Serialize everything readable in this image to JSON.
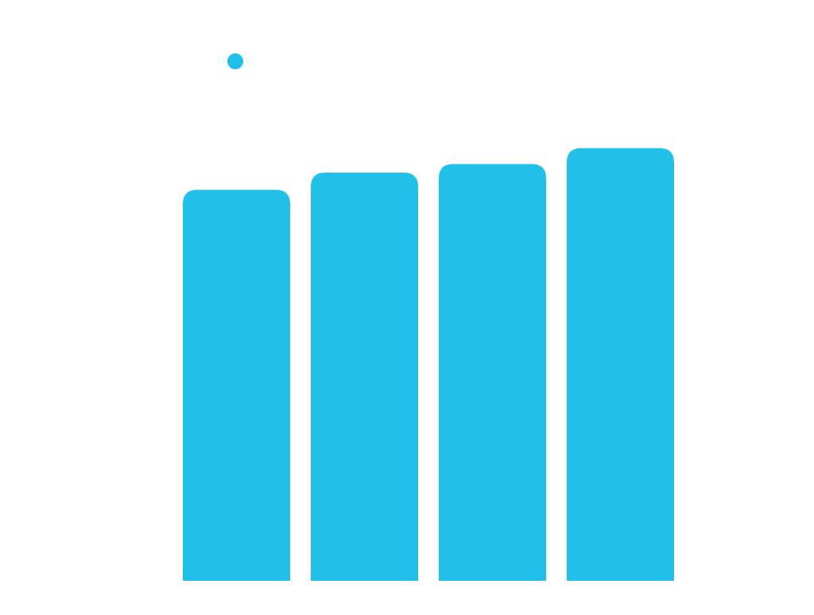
{
  "chart_data": {
    "type": "bar",
    "categories": [
      "",
      "",
      "",
      ""
    ],
    "series": [
      {
        "values": [
          91,
          95,
          97,
          100.7
        ],
        "color": "#20c0e8"
      }
    ],
    "ylim": [
      0,
      100
    ],
    "grid": false,
    "legend": "top-left",
    "bar_corner": "rounded-top"
  }
}
